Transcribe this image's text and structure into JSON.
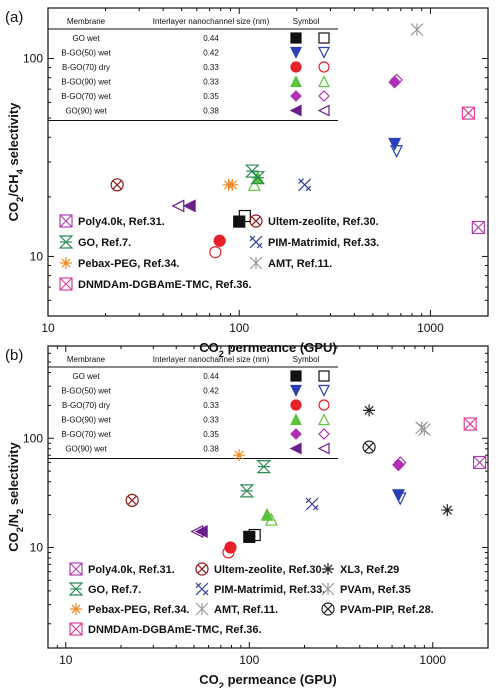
{
  "chart_data": [
    {
      "type": "scatter",
      "panel_label": "(a)",
      "xlabel": "CO2 permeance (GPU)",
      "ylabel": "CO2/CH4 selectivity",
      "x_scale": "log",
      "y_scale": "log",
      "xlim": [
        10,
        2000
      ],
      "ylim": [
        5,
        180
      ],
      "x_ticks": [
        {
          "v": 10,
          "label": "10"
        },
        {
          "v": 100,
          "label": "100"
        },
        {
          "v": 1000,
          "label": "1000"
        }
      ],
      "y_ticks": [
        {
          "v": 10,
          "label": "10"
        },
        {
          "v": 100,
          "label": "100"
        }
      ],
      "table": {
        "headers": [
          "Membrane",
          "Interlayer nanochannel size (nm)",
          "Symbol"
        ],
        "rows": [
          {
            "membrane": "GO wet",
            "size": "0.44",
            "shape": "square",
            "color": "#111111"
          },
          {
            "membrane": "B-GO(50) wet",
            "size": "0.42",
            "shape": "tri-down",
            "color": "#2a3fb8"
          },
          {
            "membrane": "B-GO(70) dry",
            "size": "0.33",
            "shape": "circle",
            "color": "#e8202a"
          },
          {
            "membrane": "B-GO(90) wet",
            "size": "0.33",
            "shape": "tri-up",
            "color": "#5cc43c"
          },
          {
            "membrane": "B-GO(70) wet",
            "size": "0.35",
            "shape": "diamond",
            "color": "#b02fb5"
          },
          {
            "membrane": "GO(90) wet",
            "size": "0.38",
            "shape": "tri-left",
            "color": "#6a1f8a"
          }
        ]
      },
      "series": [
        {
          "membrane": "GO wet",
          "points": [
            {
              "x": 100,
              "y": 15,
              "filled": true
            },
            {
              "x": 107,
              "y": 16,
              "filled": false
            }
          ]
        },
        {
          "membrane": "B-GO(50) wet",
          "points": [
            {
              "x": 650,
              "y": 37,
              "filled": true
            },
            {
              "x": 665,
              "y": 34,
              "filled": false
            }
          ]
        },
        {
          "membrane": "B-GO(70) dry",
          "points": [
            {
              "x": 79,
              "y": 12,
              "filled": true
            },
            {
              "x": 75,
              "y": 10.5,
              "filled": false
            }
          ]
        },
        {
          "membrane": "B-GO(90) wet",
          "points": [
            {
              "x": 125,
              "y": 25,
              "filled": true
            },
            {
              "x": 120,
              "y": 23,
              "filled": false
            }
          ]
        },
        {
          "membrane": "B-GO(70) wet",
          "points": [
            {
              "x": 650,
              "y": 76,
              "filled": true
            },
            {
              "x": 665,
              "y": 78,
              "filled": false
            }
          ]
        },
        {
          "membrane": "GO(90) wet",
          "points": [
            {
              "x": 55,
              "y": 18,
              "filled": true
            },
            {
              "x": 48,
              "y": 18,
              "filled": false
            }
          ]
        }
      ],
      "references": [
        {
          "name": "Poly4.0k, Ref.31.",
          "marker": "box-x",
          "color": "#b040b0",
          "points": [
            {
              "x": 1780,
              "y": 14
            }
          ]
        },
        {
          "name": "Ultem-zeolite, Ref.30.",
          "marker": "circle-x",
          "color": "#8b1a1a",
          "points": [
            {
              "x": 23,
              "y": 23
            }
          ]
        },
        {
          "name": "GO, Ref.7.",
          "marker": "hourglass",
          "color": "#2e8b57",
          "points": [
            {
              "x": 117,
              "y": 27
            },
            {
              "x": 125,
              "y": 25
            }
          ]
        },
        {
          "name": "PIM-Matrimid, Ref.33.",
          "marker": "x-cross",
          "color": "#2c3e9e",
          "points": [
            {
              "x": 220,
              "y": 23
            }
          ]
        },
        {
          "name": "Pebax-PEG, Ref.34.",
          "marker": "asterisk",
          "color": "#f08a24",
          "points": [
            {
              "x": 88,
              "y": 23
            },
            {
              "x": 92,
              "y": 23
            }
          ]
        },
        {
          "name": "AMT, Ref.11.",
          "marker": "star",
          "color": "#999999",
          "points": [
            {
              "x": 850,
              "y": 140
            }
          ]
        },
        {
          "name": "DNMDAm-DGBAmE-TMC, Ref.36.",
          "marker": "box-x",
          "color": "#e0409a",
          "points": [
            {
              "x": 1580,
              "y": 53
            }
          ]
        }
      ],
      "legend_columns": 2
    },
    {
      "type": "scatter",
      "panel_label": "(b)",
      "xlabel": "CO2 permeance (GPU)",
      "ylabel": "CO2/N2 selectivity",
      "x_scale": "log",
      "y_scale": "log",
      "xlim": [
        8,
        2000
      ],
      "ylim": [
        1.2,
        700
      ],
      "x_ticks": [
        {
          "v": 10,
          "label": "10"
        },
        {
          "v": 100,
          "label": "100"
        },
        {
          "v": 1000,
          "label": "1000"
        }
      ],
      "y_ticks": [
        {
          "v": 10,
          "label": "10"
        },
        {
          "v": 100,
          "label": "100"
        }
      ],
      "table": {
        "headers": [
          "Membrane",
          "Interlayer nanochannel size (nm)",
          "Symbol"
        ],
        "rows": [
          {
            "membrane": "GO wet",
            "size": "0.44",
            "shape": "square",
            "color": "#111111"
          },
          {
            "membrane": "B-GO(50) wet",
            "size": "0.42",
            "shape": "tri-down",
            "color": "#2a3fb8"
          },
          {
            "membrane": "B-GO(70) dry",
            "size": "0.33",
            "shape": "circle",
            "color": "#e8202a"
          },
          {
            "membrane": "B-GO(90) wet",
            "size": "0.33",
            "shape": "tri-up",
            "color": "#5cc43c"
          },
          {
            "membrane": "B-GO(70) wet",
            "size": "0.35",
            "shape": "diamond",
            "color": "#b02fb5"
          },
          {
            "membrane": "GO(90) wet",
            "size": "0.38",
            "shape": "tri-left",
            "color": "#6a1f8a"
          }
        ]
      },
      "series": [
        {
          "membrane": "GO wet",
          "points": [
            {
              "x": 100,
              "y": 12.5,
              "filled": true
            },
            {
              "x": 107,
              "y": 13,
              "filled": false
            }
          ]
        },
        {
          "membrane": "B-GO(50) wet",
          "points": [
            {
              "x": 650,
              "y": 30,
              "filled": true
            },
            {
              "x": 665,
              "y": 28,
              "filled": false
            }
          ]
        },
        {
          "membrane": "B-GO(70) dry",
          "points": [
            {
              "x": 79,
              "y": 10,
              "filled": true
            },
            {
              "x": 77,
              "y": 9,
              "filled": false
            }
          ]
        },
        {
          "membrane": "B-GO(90) wet",
          "points": [
            {
              "x": 125,
              "y": 20,
              "filled": true
            },
            {
              "x": 132,
              "y": 18,
              "filled": false
            }
          ]
        },
        {
          "membrane": "B-GO(70) wet",
          "points": [
            {
              "x": 650,
              "y": 57,
              "filled": true
            },
            {
              "x": 665,
              "y": 60,
              "filled": false
            }
          ]
        },
        {
          "membrane": "GO(90) wet",
          "points": [
            {
              "x": 55,
              "y": 14,
              "filled": true
            },
            {
              "x": 52,
              "y": 14,
              "filled": false
            }
          ]
        }
      ],
      "references": [
        {
          "name": "Poly4.0k, Ref.31.",
          "marker": "box-x",
          "color": "#b040b0",
          "points": [
            {
              "x": 1800,
              "y": 60
            }
          ]
        },
        {
          "name": "Ultem-zeolite, Ref.30.",
          "marker": "circle-x",
          "color": "#8b1a1a",
          "points": [
            {
              "x": 23,
              "y": 27
            }
          ]
        },
        {
          "name": "XL3, Ref.29",
          "marker": "asterisk",
          "color": "#222222",
          "points": [
            {
              "x": 450,
              "y": 180
            },
            {
              "x": 1200,
              "y": 22
            }
          ]
        },
        {
          "name": "GO, Ref.7.",
          "marker": "hourglass",
          "color": "#2e8b57",
          "points": [
            {
              "x": 120,
              "y": 55
            }
          ]
        },
        {
          "name": "PIM-Matrimid, Ref.33.",
          "marker": "x-cross",
          "color": "#2c3e9e",
          "points": [
            {
              "x": 220,
              "y": 25
            }
          ]
        },
        {
          "name": "PVAm, Ref.35",
          "marker": "star",
          "color": "#999999",
          "points": [
            {
              "x": 870,
              "y": 125
            }
          ]
        },
        {
          "name": "Pebax-PEG, Ref.34.",
          "marker": "asterisk",
          "color": "#f08a24",
          "points": [
            {
              "x": 88,
              "y": 70
            }
          ]
        },
        {
          "name": "AMT, Ref.11.",
          "marker": "star",
          "color": "#999999",
          "points": [
            {
              "x": 900,
              "y": 120
            }
          ]
        },
        {
          "name": "PVAm-PIP, Ref.28.",
          "marker": "circle-x",
          "color": "#222222",
          "points": [
            {
              "x": 450,
              "y": 83
            }
          ]
        },
        {
          "name": "DNMDAm-DGBAmE-TMC, Ref.36.",
          "marker": "box-x",
          "color": "#e0409a",
          "points": [
            {
              "x": 1600,
              "y": 135
            }
          ]
        }
      ],
      "references_extra": [
        {
          "series": "GO, Ref.7.",
          "points": [
            {
              "x": 97,
              "y": 33
            }
          ]
        }
      ],
      "legend_columns": 3
    }
  ]
}
